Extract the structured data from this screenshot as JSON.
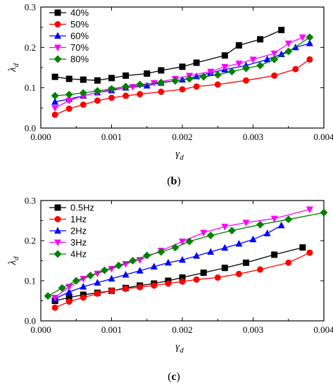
{
  "chart_data": [
    {
      "type": "line",
      "panel_label": "b",
      "xlabel": "γ",
      "xlabel_sub": "d",
      "ylabel": "λ",
      "ylabel_sub": "d",
      "xlim": [
        0.0,
        0.004
      ],
      "ylim": [
        0.0,
        0.3
      ],
      "xticks": [
        "0.000",
        "0.001",
        "0.002",
        "0.003",
        "0.004"
      ],
      "yticks": [
        "0.0",
        "0.1",
        "0.2",
        "0.3"
      ],
      "legend_position": "top-left",
      "series": [
        {
          "name": "40%",
          "color": "#000000",
          "marker": "square",
          "x": [
            0.0002,
            0.0004,
            0.0006,
            0.0008,
            0.001,
            0.0012,
            0.0015,
            0.0017,
            0.002,
            0.0022,
            0.0026,
            0.0028,
            0.0031,
            0.0034
          ],
          "y": [
            0.127,
            0.122,
            0.12,
            0.118,
            0.124,
            0.13,
            0.135,
            0.143,
            0.152,
            0.162,
            0.18,
            0.205,
            0.22,
            0.243
          ]
        },
        {
          "name": "50%",
          "color": "#ff0000",
          "marker": "circle",
          "x": [
            0.0002,
            0.0004,
            0.0006,
            0.0008,
            0.001,
            0.0012,
            0.0014,
            0.0017,
            0.002,
            0.0022,
            0.0025,
            0.0029,
            0.0033,
            0.0036,
            0.0038
          ],
          "y": [
            0.033,
            0.048,
            0.058,
            0.068,
            0.075,
            0.08,
            0.084,
            0.09,
            0.096,
            0.103,
            0.108,
            0.118,
            0.13,
            0.146,
            0.17
          ]
        },
        {
          "name": "60%",
          "color": "#0000ff",
          "marker": "triangle-up",
          "x": [
            0.0002,
            0.0004,
            0.0006,
            0.0008,
            0.001,
            0.0012,
            0.0015,
            0.0017,
            0.002,
            0.0022,
            0.0024,
            0.0026,
            0.0029,
            0.0032,
            0.0034,
            0.0036,
            0.0038
          ],
          "y": [
            0.065,
            0.072,
            0.08,
            0.088,
            0.093,
            0.1,
            0.105,
            0.112,
            0.12,
            0.128,
            0.137,
            0.145,
            0.155,
            0.17,
            0.183,
            0.2,
            0.21
          ]
        },
        {
          "name": "70%",
          "color": "#ff00ff",
          "marker": "triangle-down",
          "x": [
            0.0002,
            0.0004,
            0.0006,
            0.0008,
            0.001,
            0.0013,
            0.0016,
            0.0019,
            0.0021,
            0.0024,
            0.0026,
            0.0028,
            0.003,
            0.0033,
            0.0035,
            0.0037
          ],
          "y": [
            0.05,
            0.068,
            0.08,
            0.088,
            0.095,
            0.102,
            0.112,
            0.122,
            0.13,
            0.14,
            0.152,
            0.16,
            0.17,
            0.185,
            0.21,
            0.225
          ]
        },
        {
          "name": "80%",
          "color": "#008000",
          "marker": "diamond",
          "x": [
            0.0002,
            0.0004,
            0.0006,
            0.0008,
            0.001,
            0.0012,
            0.0014,
            0.0017,
            0.0019,
            0.0021,
            0.0023,
            0.0025,
            0.0027,
            0.0029,
            0.0031,
            0.0033,
            0.0035,
            0.0038
          ],
          "y": [
            0.08,
            0.083,
            0.087,
            0.092,
            0.097,
            0.103,
            0.108,
            0.113,
            0.117,
            0.122,
            0.127,
            0.132,
            0.14,
            0.148,
            0.155,
            0.17,
            0.19,
            0.225
          ]
        }
      ]
    },
    {
      "type": "line",
      "panel_label": "c",
      "xlabel": "γ",
      "xlabel_sub": "d",
      "ylabel": "λ",
      "ylabel_sub": "d",
      "xlim": [
        0.0,
        0.004
      ],
      "ylim": [
        0.0,
        0.3
      ],
      "xticks": [
        "0.000",
        "0.001",
        "0.002",
        "0.003",
        "0.004"
      ],
      "yticks": [
        "0.0",
        "0.1",
        "0.2",
        "0.3"
      ],
      "legend_position": "top-left",
      "series": [
        {
          "name": "0.5Hz",
          "color": "#000000",
          "marker": "square",
          "x": [
            0.0002,
            0.0004,
            0.0006,
            0.0008,
            0.001,
            0.0012,
            0.0014,
            0.0016,
            0.0018,
            0.002,
            0.0023,
            0.0026,
            0.0029,
            0.0033,
            0.0037
          ],
          "y": [
            0.05,
            0.058,
            0.065,
            0.07,
            0.075,
            0.082,
            0.088,
            0.093,
            0.1,
            0.108,
            0.12,
            0.132,
            0.145,
            0.165,
            0.183
          ]
        },
        {
          "name": "1Hz",
          "color": "#ff0000",
          "marker": "circle",
          "x": [
            0.0002,
            0.0004,
            0.0006,
            0.0008,
            0.001,
            0.0012,
            0.0014,
            0.0016,
            0.0018,
            0.002,
            0.0022,
            0.0025,
            0.0028,
            0.0031,
            0.0035,
            0.0038
          ],
          "y": [
            0.033,
            0.048,
            0.058,
            0.068,
            0.075,
            0.08,
            0.084,
            0.088,
            0.093,
            0.098,
            0.103,
            0.108,
            0.117,
            0.128,
            0.145,
            0.17
          ]
        },
        {
          "name": "2Hz",
          "color": "#0000ff",
          "marker": "triangle-up",
          "x": [
            0.0002,
            0.0004,
            0.0006,
            0.0008,
            0.001,
            0.0012,
            0.0014,
            0.0016,
            0.0018,
            0.002,
            0.0022,
            0.0024,
            0.0026,
            0.0028,
            0.003,
            0.0032,
            0.0034
          ],
          "y": [
            0.055,
            0.072,
            0.085,
            0.095,
            0.105,
            0.115,
            0.125,
            0.135,
            0.145,
            0.152,
            0.162,
            0.172,
            0.182,
            0.192,
            0.203,
            0.218,
            0.238
          ]
        },
        {
          "name": "3Hz",
          "color": "#ff00ff",
          "marker": "triangle-down",
          "x": [
            0.0002,
            0.0004,
            0.0006,
            0.0008,
            0.001,
            0.0012,
            0.0014,
            0.0017,
            0.002,
            0.0023,
            0.0026,
            0.0029,
            0.0033,
            0.0038
          ],
          "y": [
            0.058,
            0.085,
            0.105,
            0.118,
            0.13,
            0.142,
            0.152,
            0.175,
            0.198,
            0.22,
            0.235,
            0.245,
            0.255,
            0.278
          ]
        },
        {
          "name": "4Hz",
          "color": "#008000",
          "marker": "diamond",
          "x": [
            0.0001,
            0.0003,
            0.0005,
            0.0007,
            0.0009,
            0.0011,
            0.0013,
            0.0015,
            0.0017,
            0.0019,
            0.0021,
            0.0024,
            0.0027,
            0.0031,
            0.0035,
            0.004
          ],
          "y": [
            0.062,
            0.082,
            0.1,
            0.113,
            0.126,
            0.138,
            0.15,
            0.163,
            0.172,
            0.183,
            0.198,
            0.213,
            0.225,
            0.24,
            0.253,
            0.27
          ]
        }
      ]
    }
  ]
}
